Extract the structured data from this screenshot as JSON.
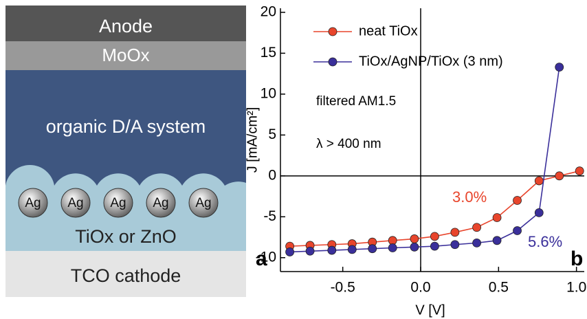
{
  "diagram": {
    "layers": [
      "Anode",
      "MoOx",
      "organic D/A system",
      "TiOx or ZnO",
      "TCO cathode"
    ],
    "particles": [
      "Ag",
      "Ag",
      "Ag",
      "Ag",
      "Ag"
    ],
    "panel_label": "a"
  },
  "chart_data": {
    "type": "line",
    "panel_label": "b",
    "x_label": "V [V]",
    "y_label": "J [mA/cm²]",
    "annotations": [
      "filtered AM1.5",
      "λ > 400 nm",
      "3.0%",
      "5.6%"
    ],
    "x": [
      -0.84,
      -0.71,
      -0.57,
      -0.44,
      -0.31,
      -0.18,
      -0.04,
      0.09,
      0.22,
      0.36,
      0.49,
      0.62,
      0.76,
      0.89,
      1.02
    ],
    "series": [
      {
        "name": "neat TiOx",
        "color": "#e8452c",
        "values": [
          -8.6,
          -8.5,
          -8.4,
          -8.3,
          -8.1,
          -7.9,
          -7.7,
          -7.4,
          -6.9,
          -6.3,
          -5.1,
          -3.0,
          -0.6,
          0.0,
          0.6
        ]
      },
      {
        "name": "TiOx/AgNP/TiOx (3 nm)",
        "color": "#3a2f9a",
        "values": [
          -9.3,
          -9.2,
          -9.1,
          -9.0,
          -8.9,
          -8.8,
          -8.7,
          -8.6,
          -8.4,
          -8.2,
          -7.9,
          -6.7,
          -4.5,
          13.3,
          null
        ]
      }
    ],
    "xlim": [
      -0.9,
      1.05
    ],
    "ylim": [
      -11.7,
      20.5
    ],
    "xticks": [
      -0.5,
      {
        "value": 0,
        "label": "0.0"
      },
      0.5,
      {
        "value": 1,
        "label": "1.0"
      }
    ],
    "yticks": [
      -10,
      -5,
      0,
      5,
      10,
      15,
      20
    ]
  }
}
